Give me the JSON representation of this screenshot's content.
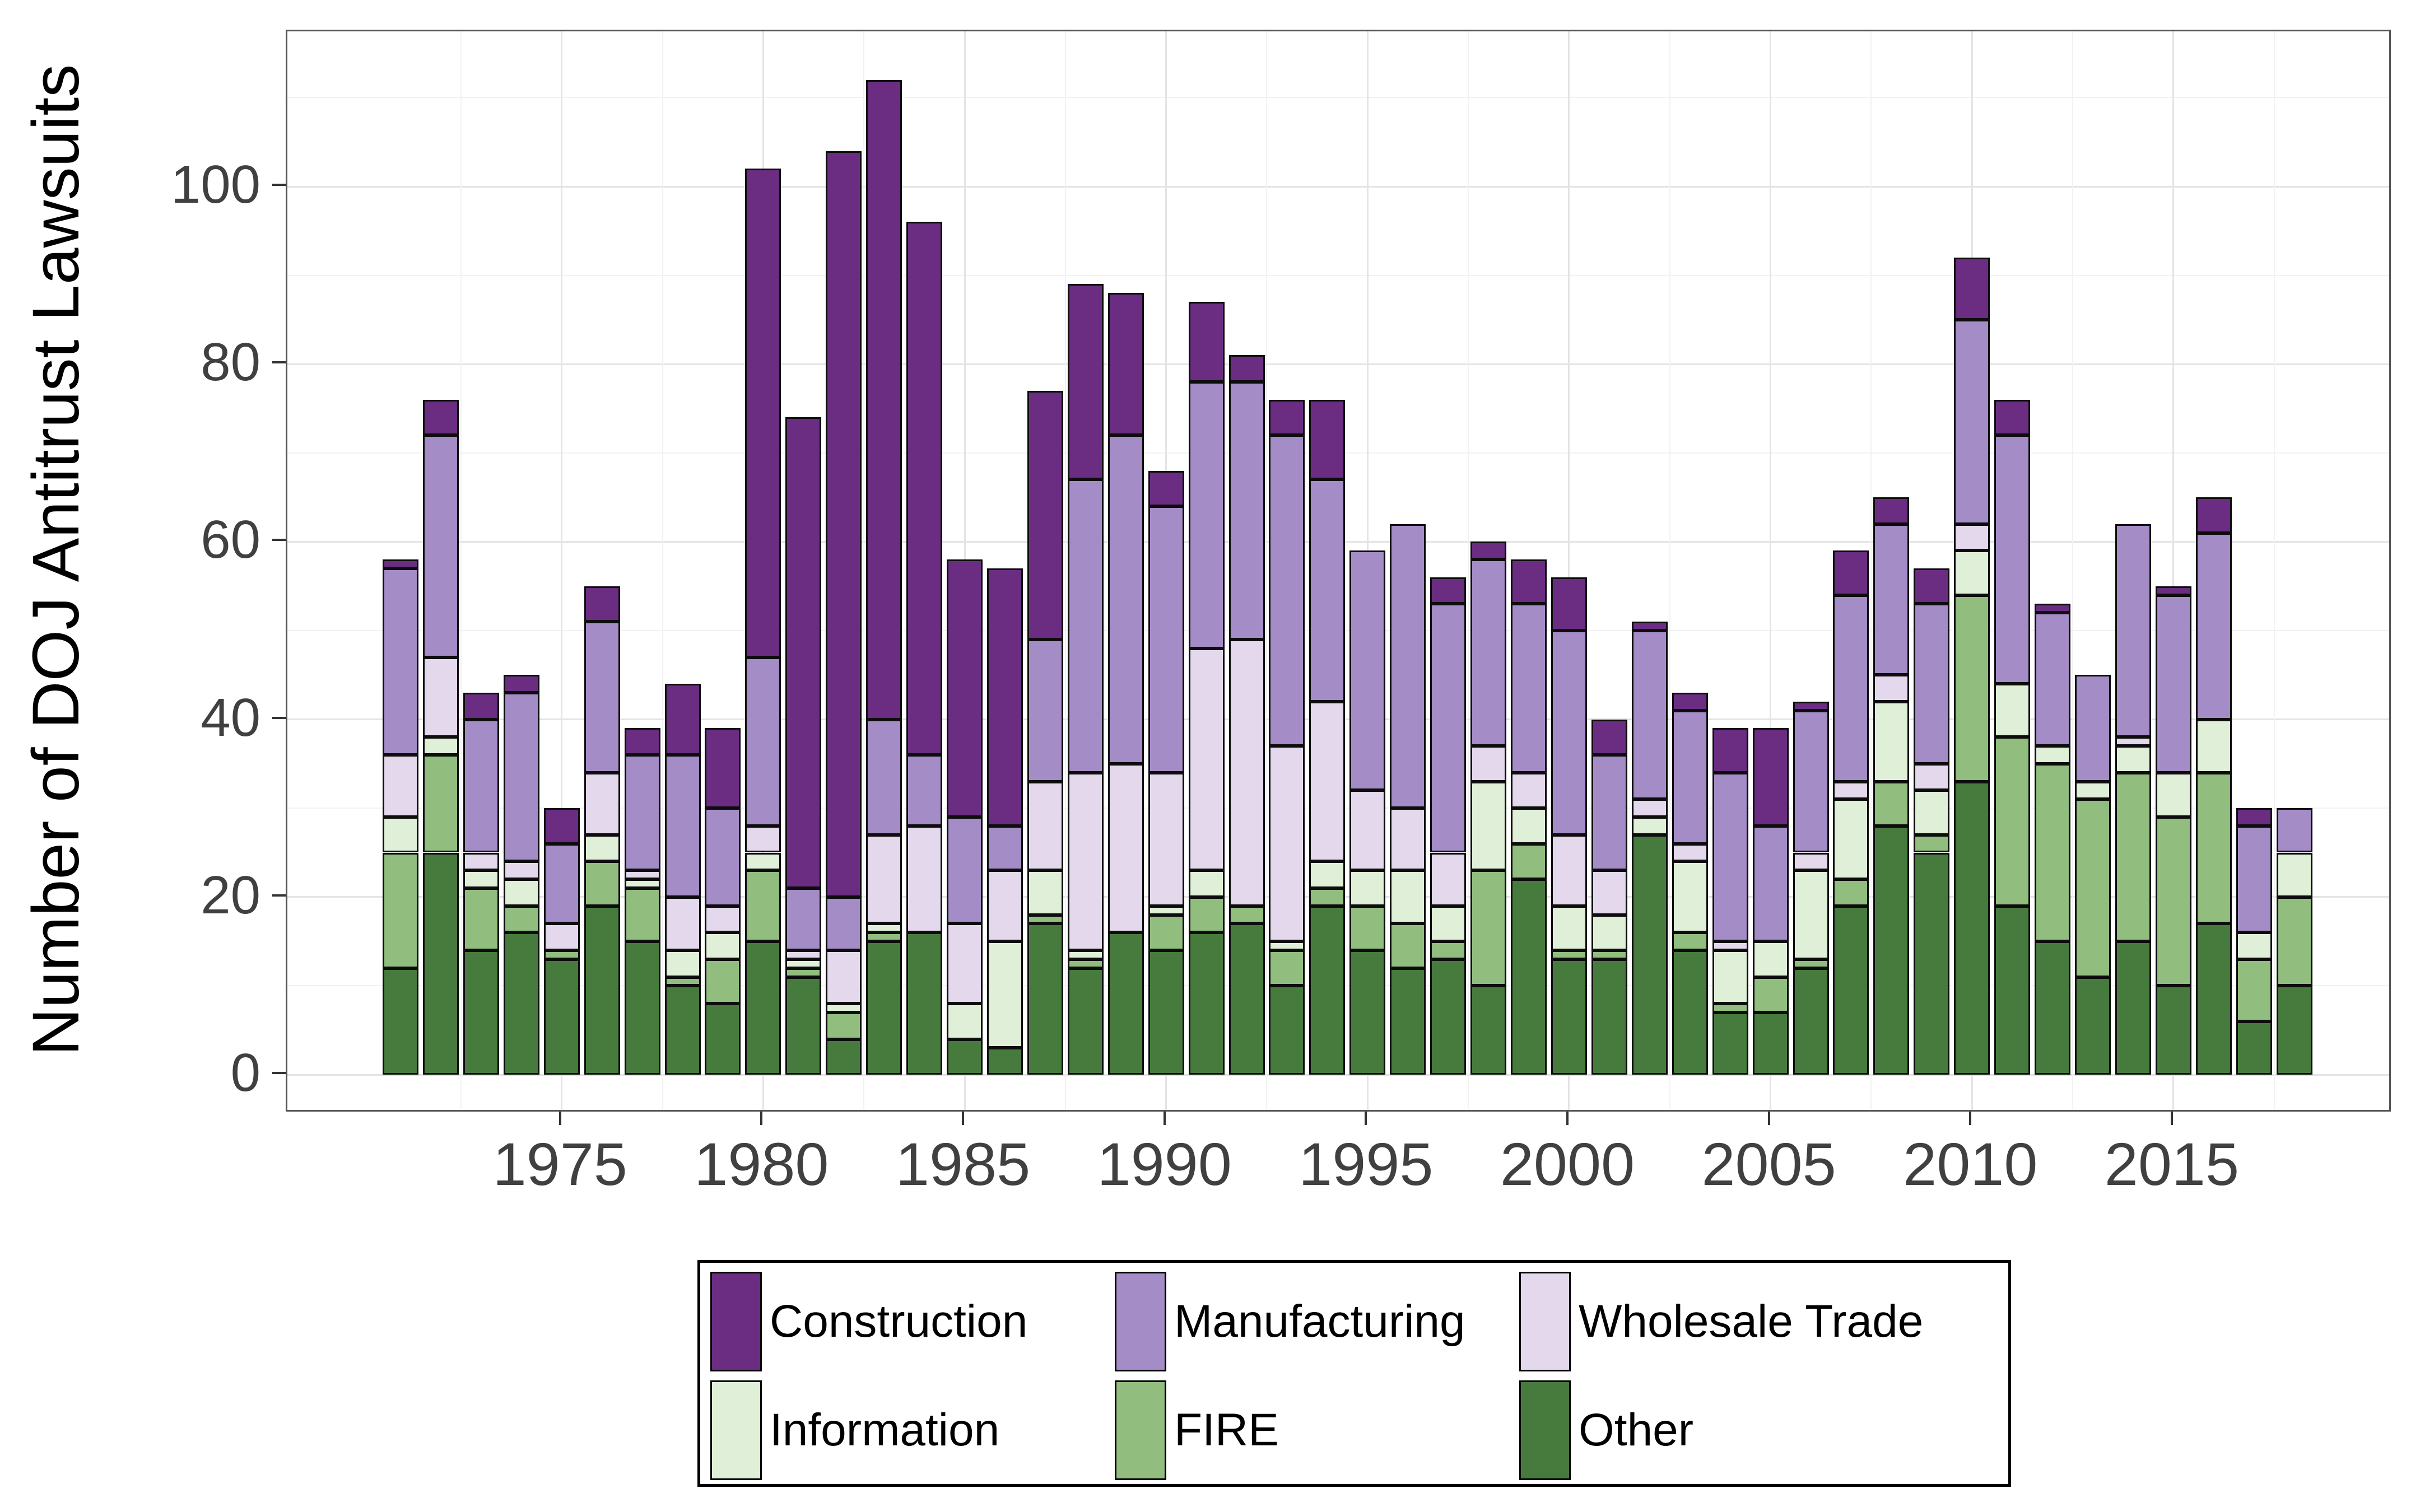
{
  "y_axis": {
    "title": "Number of DOJ Antitrust Lawsuits",
    "ticks": [
      0,
      20,
      40,
      60,
      80,
      100
    ],
    "minor_gridlines": [
      10,
      30,
      50,
      70,
      90,
      110
    ]
  },
  "x_axis": {
    "ticks": [
      1975,
      1980,
      1985,
      1990,
      1995,
      2000,
      2005,
      2010,
      2015
    ]
  },
  "legend": {
    "items": [
      {
        "label": "Construction",
        "color": "#6a2d82"
      },
      {
        "label": "Manufacturing",
        "color": "#a48cc6"
      },
      {
        "label": "Wholesale Trade",
        "color": "#e4d8ec"
      },
      {
        "label": "Information",
        "color": "#e0f0d8"
      },
      {
        "label": "FIRE",
        "color": "#91bd7f"
      },
      {
        "label": "Other",
        "color": "#477b3d"
      }
    ]
  },
  "colors": {
    "panel_border": "#555555",
    "bar_outline": "#0d0d0d",
    "axis_text": "#404040",
    "gridline_major": "#e4e4e4",
    "gridline_minor": "#f2f2f2"
  },
  "chart_data": {
    "type": "bar",
    "stacked": true,
    "title": "",
    "xlabel": "",
    "ylabel": "Number of DOJ Antitrust Lawsuits",
    "ylim": [
      0,
      117
    ],
    "grid": true,
    "legend_position": "bottom",
    "x": [
      1971,
      1972,
      1973,
      1974,
      1975,
      1976,
      1977,
      1978,
      1979,
      1980,
      1981,
      1982,
      1983,
      1984,
      1985,
      1986,
      1987,
      1988,
      1989,
      1990,
      1991,
      1992,
      1993,
      1994,
      1995,
      1996,
      1997,
      1998,
      1999,
      2000,
      2001,
      2002,
      2003,
      2004,
      2005,
      2006,
      2007,
      2008,
      2009,
      2010,
      2011,
      2012,
      2013,
      2014,
      2015,
      2016,
      2017,
      2018
    ],
    "stack_order_bottom_to_top": [
      "Other",
      "FIRE",
      "Information",
      "Wholesale Trade",
      "Manufacturing",
      "Construction"
    ],
    "series": [
      {
        "name": "Construction",
        "color": "#6a2d82",
        "values": [
          1,
          4,
          3,
          2,
          4,
          4,
          3,
          8,
          9,
          55,
          53,
          84,
          72,
          60,
          29,
          29,
          28,
          22,
          16,
          4,
          9,
          3,
          4,
          9,
          0,
          0,
          3,
          2,
          5,
          6,
          4,
          1,
          2,
          5,
          11,
          1,
          5,
          3,
          4,
          7,
          4,
          1,
          0,
          0,
          1,
          4,
          2,
          0
        ]
      },
      {
        "name": "Manufacturing",
        "color": "#a48cc6",
        "values": [
          21,
          25,
          15,
          19,
          9,
          17,
          13,
          16,
          11,
          19,
          7,
          6,
          13,
          8,
          12,
          5,
          16,
          33,
          37,
          30,
          30,
          29,
          35,
          25,
          27,
          32,
          28,
          21,
          19,
          23,
          13,
          19,
          15,
          19,
          13,
          16,
          21,
          17,
          18,
          23,
          28,
          15,
          12,
          24,
          20,
          21,
          12,
          5
        ]
      },
      {
        "name": "Wholesale Trade",
        "color": "#e4d8ec",
        "values": [
          7,
          9,
          2,
          2,
          3,
          7,
          1,
          6,
          3,
          3,
          1,
          6,
          10,
          12,
          9,
          8,
          10,
          20,
          19,
          15,
          25,
          30,
          22,
          18,
          9,
          7,
          6,
          4,
          4,
          8,
          5,
          2,
          2,
          1,
          0,
          2,
          2,
          3,
          3,
          3,
          0,
          0,
          0,
          1,
          0,
          0,
          0,
          0
        ]
      },
      {
        "name": "Information",
        "color": "#e0f0d8",
        "values": [
          4,
          2,
          2,
          3,
          0,
          3,
          1,
          3,
          3,
          2,
          1,
          1,
          1,
          0,
          4,
          12,
          5,
          1,
          0,
          1,
          3,
          0,
          1,
          3,
          4,
          6,
          4,
          10,
          4,
          5,
          4,
          2,
          8,
          6,
          4,
          10,
          9,
          9,
          5,
          5,
          6,
          2,
          2,
          3,
          5,
          6,
          3,
          5
        ]
      },
      {
        "name": "FIRE",
        "color": "#91bd7f",
        "values": [
          13,
          11,
          7,
          3,
          1,
          5,
          6,
          1,
          5,
          8,
          1,
          3,
          1,
          0,
          0,
          0,
          1,
          1,
          0,
          4,
          4,
          2,
          4,
          2,
          5,
          5,
          2,
          13,
          4,
          1,
          1,
          0,
          2,
          1,
          4,
          1,
          3,
          5,
          2,
          21,
          19,
          20,
          20,
          19,
          19,
          17,
          7,
          10
        ]
      },
      {
        "name": "Other",
        "color": "#477b3d",
        "values": [
          12,
          25,
          14,
          16,
          13,
          19,
          15,
          10,
          8,
          15,
          11,
          4,
          15,
          16,
          4,
          3,
          17,
          12,
          16,
          14,
          16,
          17,
          10,
          19,
          14,
          12,
          13,
          10,
          22,
          13,
          13,
          27,
          14,
          7,
          7,
          12,
          19,
          28,
          25,
          33,
          19,
          15,
          11,
          15,
          10,
          17,
          6,
          10
        ]
      }
    ],
    "totals": [
      58,
      76,
      43,
      45,
      30,
      55,
      39,
      44,
      39,
      102,
      74,
      104,
      112,
      96,
      58,
      57,
      77,
      89,
      88,
      68,
      87,
      81,
      76,
      76,
      59,
      62,
      56,
      60,
      58,
      56,
      40,
      51,
      43,
      39,
      39,
      42,
      59,
      65,
      57,
      92,
      76,
      53,
      45,
      62,
      55,
      65,
      30,
      30
    ]
  }
}
